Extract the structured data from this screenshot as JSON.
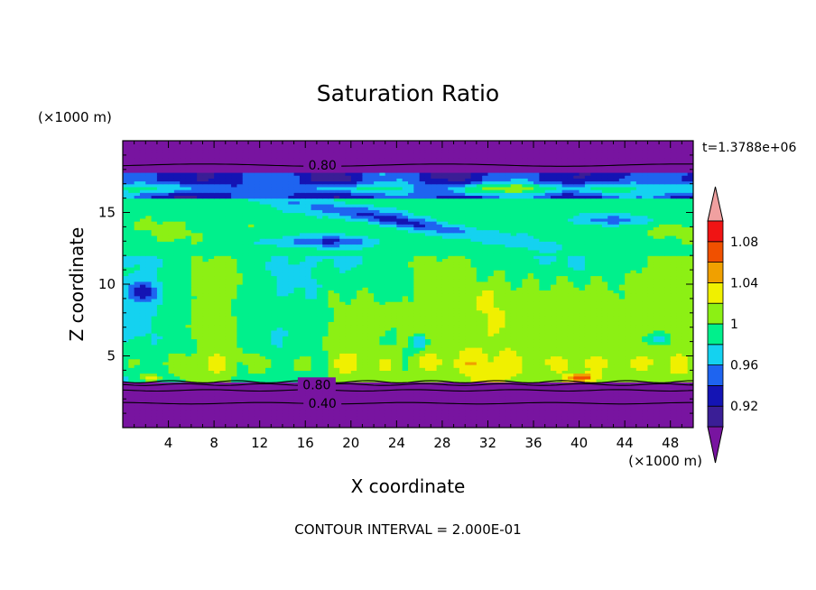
{
  "chart_data": {
    "type": "heatmap",
    "title": "Saturation Ratio",
    "xlabel": "X coordinate",
    "ylabel": "Z coordinate",
    "x_unit": "(×1000 m)",
    "y_unit": "(×1000 m)",
    "time_label": "t=1.3788e+06",
    "footer": "CONTOUR INTERVAL = 2.000E-01",
    "xlim": [
      0,
      50
    ],
    "ylim": [
      0,
      20
    ],
    "x_ticks": [
      "4",
      "8",
      "12",
      "16",
      "20",
      "24",
      "28",
      "32",
      "36",
      "40",
      "44",
      "48"
    ],
    "y_ticks": [
      "5",
      "10",
      "15"
    ],
    "colorbar": {
      "levels": [
        0.9,
        0.92,
        0.94,
        0.96,
        0.98,
        1.0,
        1.02,
        1.04,
        1.06,
        1.08,
        1.1
      ],
      "tick_labels": [
        "0.92",
        "0.96",
        "1",
        "1.04",
        "1.08"
      ],
      "colors": [
        "#3a1e96",
        "#1414b4",
        "#1e64f0",
        "#14d2f0",
        "#00f08c",
        "#8cf014",
        "#f0f000",
        "#f0a000",
        "#f05000",
        "#f01414"
      ],
      "under_color": "#7814a0",
      "over_color": "#f0a0a0"
    },
    "contour_labels": [
      {
        "text": "0.80",
        "x": 17.5,
        "y": 18.3
      },
      {
        "text": "0.80",
        "x": 17,
        "y": 3.0
      },
      {
        "text": "0.40",
        "x": 17.5,
        "y": 1.7
      }
    ]
  }
}
